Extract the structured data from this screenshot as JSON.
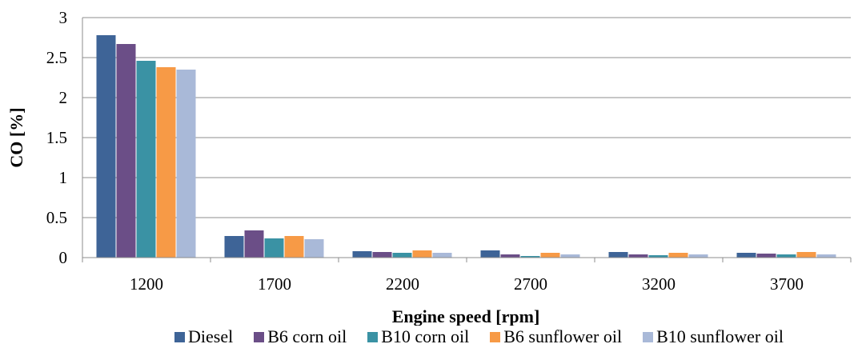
{
  "chart_data": {
    "type": "bar",
    "title": "",
    "xlabel": "Engine speed [rpm]",
    "ylabel": "CO [%]",
    "ylim": [
      0,
      3
    ],
    "yticks": [
      "0",
      "0.5",
      "1",
      "1.5",
      "2",
      "2.5",
      "3"
    ],
    "categories": [
      "1200",
      "1700",
      "2200",
      "2700",
      "3200",
      "3700"
    ],
    "grid": true,
    "legend_position": "bottom",
    "series": [
      {
        "name": "Diesel",
        "color": "#3E6497",
        "values": [
          2.78,
          0.27,
          0.08,
          0.09,
          0.07,
          0.06
        ]
      },
      {
        "name": "B6 corn oil",
        "color": "#6B4E87",
        "values": [
          2.67,
          0.34,
          0.07,
          0.04,
          0.04,
          0.05
        ]
      },
      {
        "name": "B10 corn oil",
        "color": "#3A92A4",
        "values": [
          2.46,
          0.24,
          0.06,
          0.02,
          0.03,
          0.04
        ]
      },
      {
        "name": "B6 sunflower oil",
        "color": "#F79A46",
        "values": [
          2.38,
          0.27,
          0.09,
          0.06,
          0.06,
          0.07
        ]
      },
      {
        "name": "B10 sunflower oil",
        "color": "#A9B9D8",
        "values": [
          2.35,
          0.23,
          0.06,
          0.04,
          0.04,
          0.04
        ]
      }
    ]
  }
}
